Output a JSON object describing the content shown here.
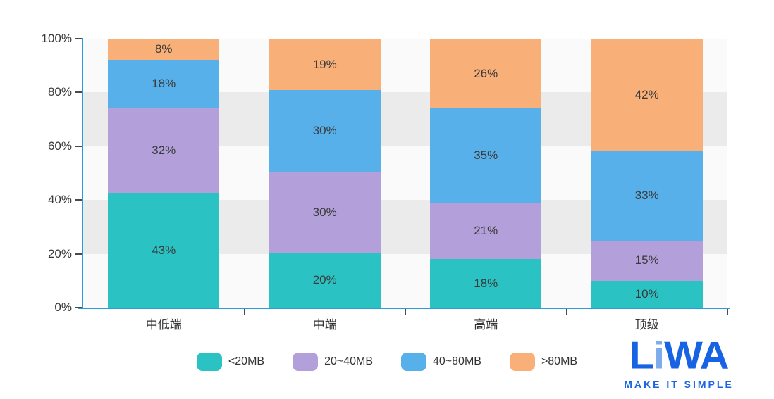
{
  "chart_data": {
    "type": "bar",
    "variant": "stacked-percent-column",
    "title": "",
    "categories": [
      "中低端",
      "中端",
      "高端",
      "顶级"
    ],
    "series": [
      {
        "name": "<20MB",
        "color": "#2bc2c4",
        "values": [
          43,
          20,
          18,
          10
        ]
      },
      {
        "name": "20~40MB",
        "color": "#b3a0da",
        "values": [
          32,
          30,
          21,
          15
        ]
      },
      {
        "name": "40~80MB",
        "color": "#57b0e9",
        "values": [
          18,
          30,
          35,
          33
        ]
      },
      {
        "name": ">80MB",
        "color": "#f9b078",
        "values": [
          8,
          19,
          26,
          42
        ]
      }
    ],
    "label_format": "{value}%",
    "y_ticks_top_to_bottom": [
      "100%",
      "80%",
      "60%",
      "40%",
      "20%",
      "0%"
    ],
    "ylim": [
      0,
      100
    ],
    "legend_position": "bottom-center",
    "grid": {
      "style": "alternating-horizontal-bands",
      "band_light": "#fafafa",
      "band_gray": "#ebebeb"
    },
    "axis_color": "#2d9bd8",
    "tick_color": "#4a4a4a"
  },
  "branding": {
    "logo_letters": [
      {
        "ch": "L",
        "color": "#1763e3"
      },
      {
        "ch": "i",
        "color": "#7dabec"
      },
      {
        "ch": "W",
        "color": "#1763e3"
      },
      {
        "ch": "A",
        "color": "#1763e3"
      }
    ],
    "tagline": "MAKE IT SIMPLE",
    "tagline_color": "#1b66e0"
  }
}
